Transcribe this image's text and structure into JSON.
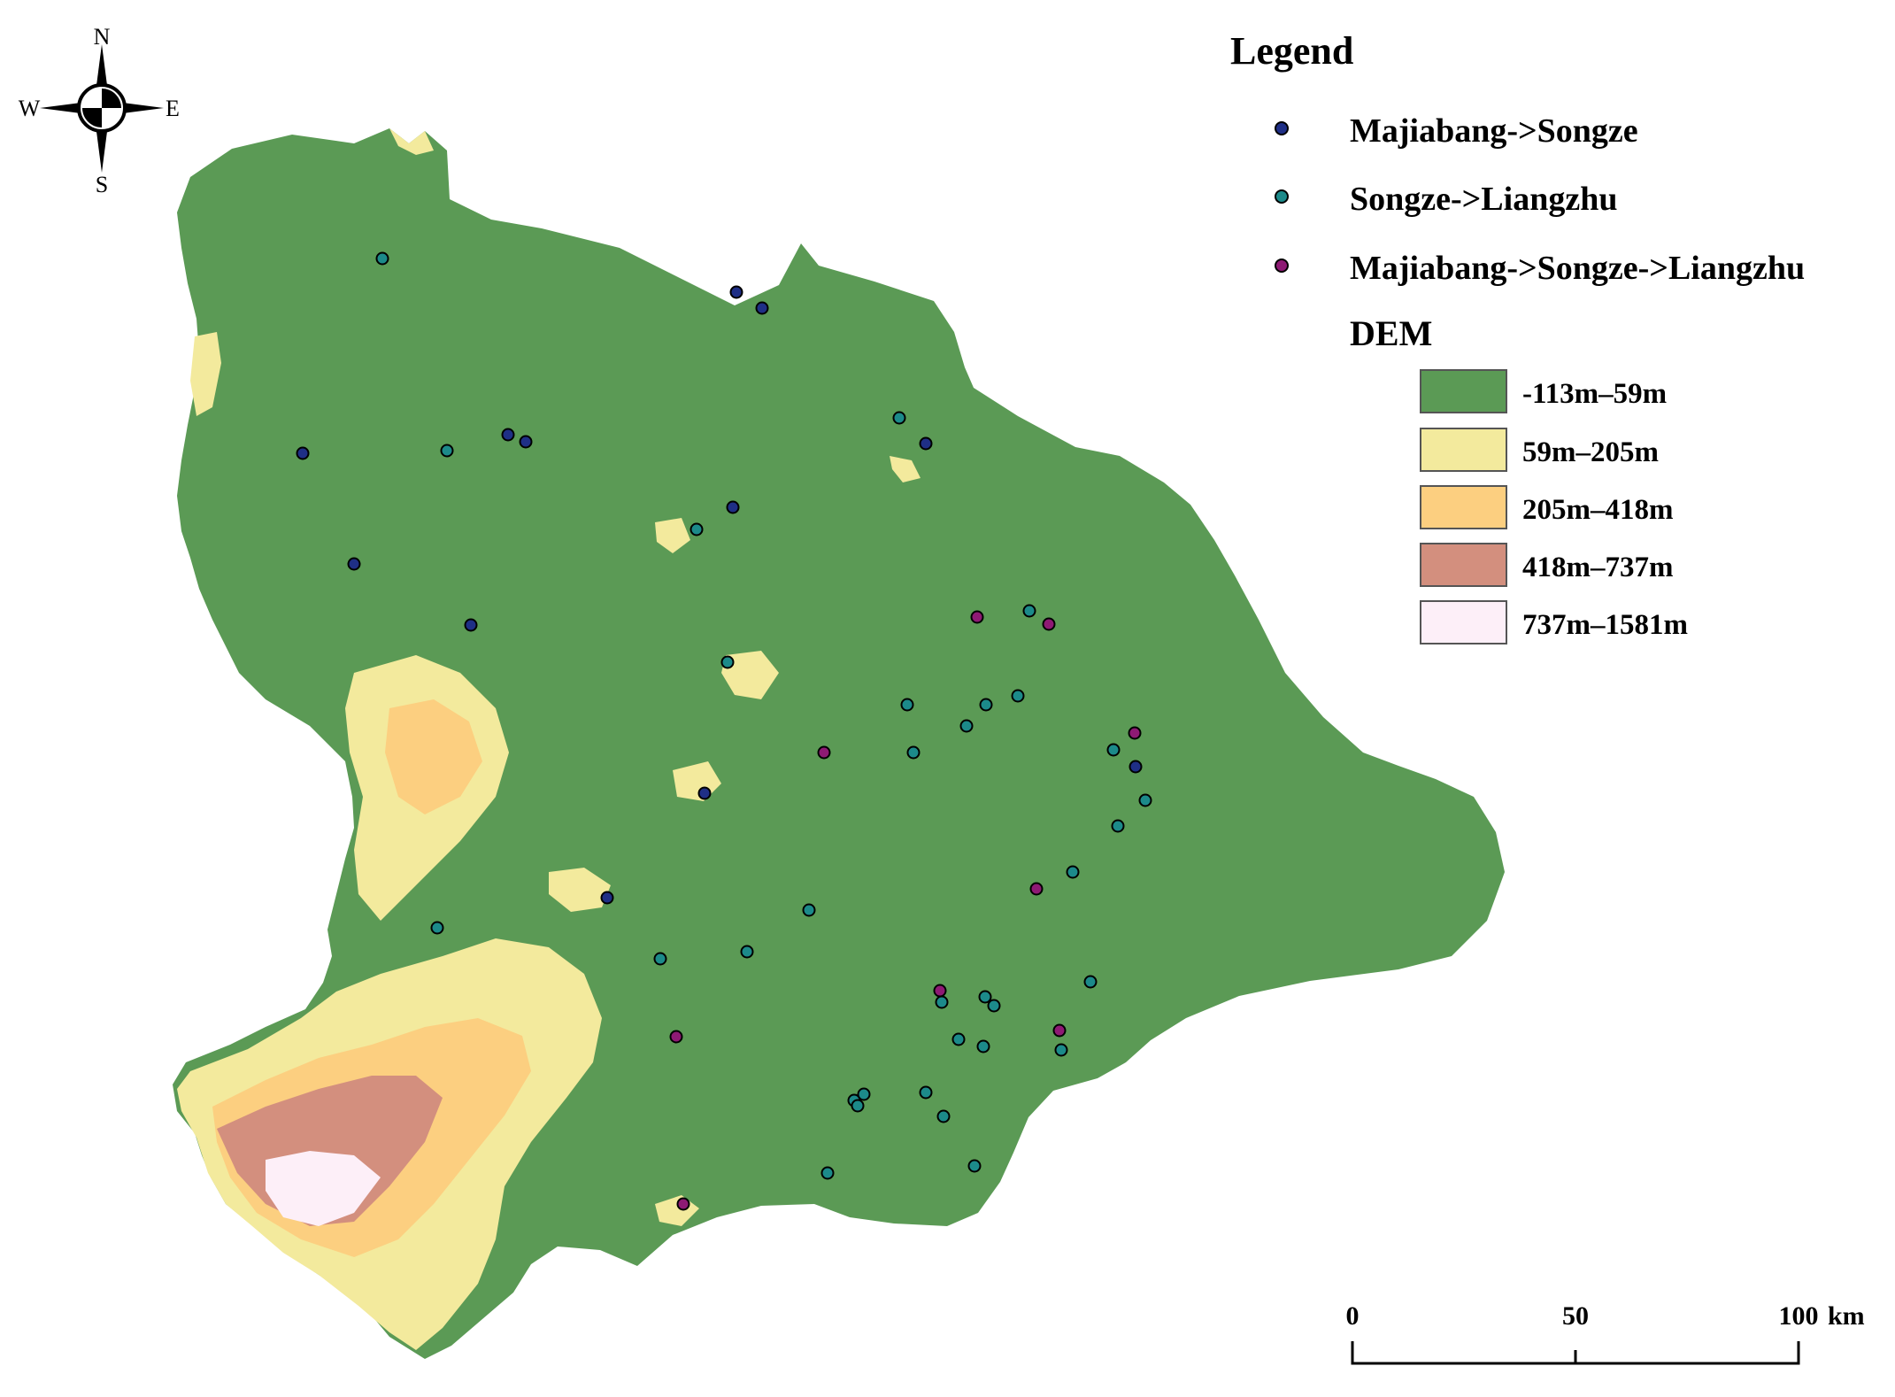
{
  "compass": {
    "n": "N",
    "s": "S",
    "e": "E",
    "w": "W"
  },
  "legend": {
    "title": "Legend",
    "points": [
      {
        "label": "Majiabang->Songze",
        "color": "#1f2f86"
      },
      {
        "label": "Songze->Liangzhu",
        "color": "#1c8a8a"
      },
      {
        "label": "Majiabang->Songze->Liangzhu",
        "color": "#8e1a74"
      }
    ],
    "dem_title": "DEM",
    "dem_classes": [
      {
        "label": "-113m–59m",
        "color": "#5b9a55"
      },
      {
        "label": "59m–205m",
        "color": "#f3ea9d"
      },
      {
        "label": "205m–418m",
        "color": "#fccf80"
      },
      {
        "label": "418m–737m",
        "color": "#d38f7e"
      },
      {
        "label": "737m–1581m",
        "color": "#fdeff8"
      }
    ]
  },
  "scale_bar": {
    "ticks": [
      "0",
      "50",
      "100"
    ],
    "unit": "km"
  }
}
